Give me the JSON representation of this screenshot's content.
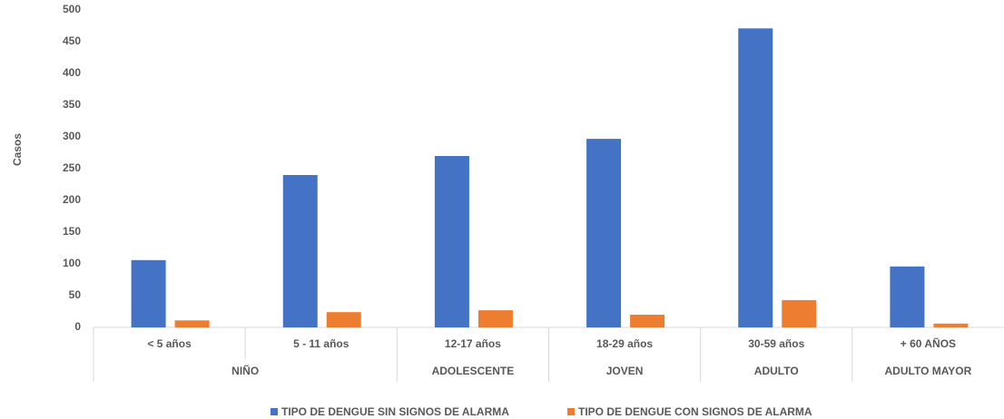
{
  "chart_data": {
    "type": "bar",
    "y_label": "Casos",
    "categories": [
      "< 5 años",
      "5 - 11 años",
      "12-17 años",
      "18-29 años",
      "30-59 años",
      "+ 60 AÑOS"
    ],
    "groups": [
      {
        "label": "NIÑO",
        "span": 2
      },
      {
        "label": "ADOLESCENTE",
        "span": 1
      },
      {
        "label": "JOVEN",
        "span": 1
      },
      {
        "label": "ADULTO",
        "span": 1
      },
      {
        "label": "ADULTO MAYOR",
        "span": 1
      }
    ],
    "series": [
      {
        "name": "TIPO DE DENGUE SIN SIGNOS DE ALARMA",
        "color": "#4472c4",
        "values": [
          106,
          240,
          270,
          297,
          471,
          96
        ]
      },
      {
        "name": "TIPO DE DENGUE CON SIGNOS DE ALARMA",
        "color": "#ed7d31",
        "values": [
          11,
          24,
          27,
          20,
          43,
          6
        ]
      }
    ],
    "ylim": [
      0,
      500
    ],
    "yticks": [
      0,
      50,
      100,
      150,
      200,
      250,
      300,
      350,
      400,
      450,
      500
    ],
    "grid": false
  }
}
